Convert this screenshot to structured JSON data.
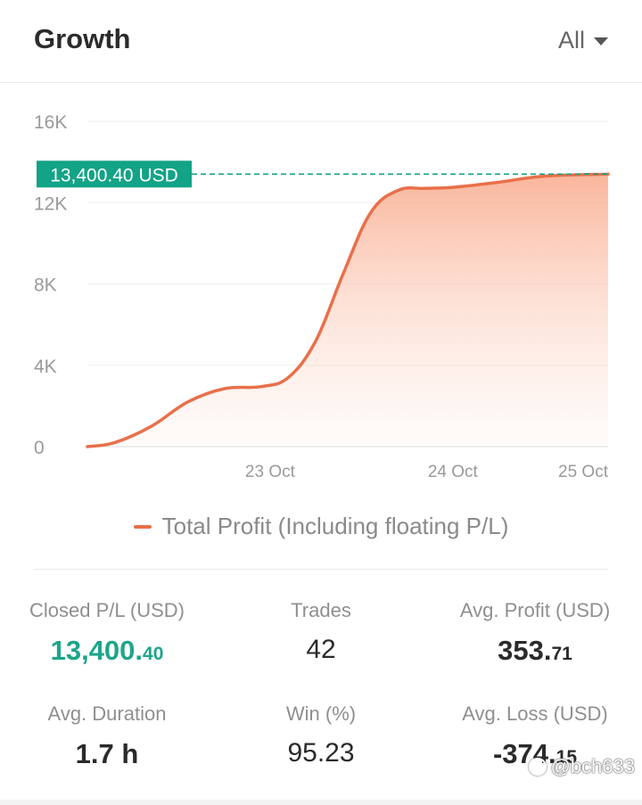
{
  "header": {
    "title": "Growth",
    "filter_label": "All"
  },
  "chart_data": {
    "type": "area",
    "title": "",
    "xlabel": "",
    "ylabel": "",
    "ylim": [
      0,
      16000
    ],
    "y_ticks": [
      0,
      4000,
      8000,
      12000,
      16000
    ],
    "y_tick_labels": [
      "0",
      "4K",
      "8K",
      "12K",
      "16K"
    ],
    "x_tick_labels": [
      "23 Oct",
      "24 Oct",
      "25 Oct"
    ],
    "x_tick_positions": [
      1.0,
      2.0,
      2.85
    ],
    "x_range": [
      0.0,
      2.85
    ],
    "grid": true,
    "legend_position": "bottom",
    "series": [
      {
        "name": "Total Profit (Including floating P/L)",
        "color": "#e8704a",
        "x": [
          0.0,
          0.15,
          0.35,
          0.55,
          0.75,
          0.95,
          1.1,
          1.25,
          1.4,
          1.55,
          1.7,
          1.85,
          2.0,
          2.25,
          2.5,
          2.85
        ],
        "values": [
          0,
          200,
          1000,
          2200,
          2850,
          2950,
          3400,
          5200,
          8500,
          11500,
          12600,
          12700,
          12750,
          13000,
          13300,
          13400
        ]
      }
    ],
    "current_value_label": "13,400.40 USD",
    "current_value": 13400.4,
    "accent_color": "#13a386"
  },
  "stats": {
    "closed_pl": {
      "label": "Closed P/L (USD)",
      "int": "13,400.",
      "dec": "40"
    },
    "trades": {
      "label": "Trades",
      "value": "42"
    },
    "avg_profit": {
      "label": "Avg. Profit (USD)",
      "int": "353.",
      "dec": "71"
    },
    "avg_duration": {
      "label": "Avg. Duration",
      "value": "1.7 h"
    },
    "win": {
      "label": "Win (%)",
      "value": "95.23"
    },
    "avg_loss": {
      "label": "Avg. Loss (USD)",
      "int": "-374.",
      "dec": "15"
    }
  },
  "watermark": {
    "text": "@bch633"
  }
}
